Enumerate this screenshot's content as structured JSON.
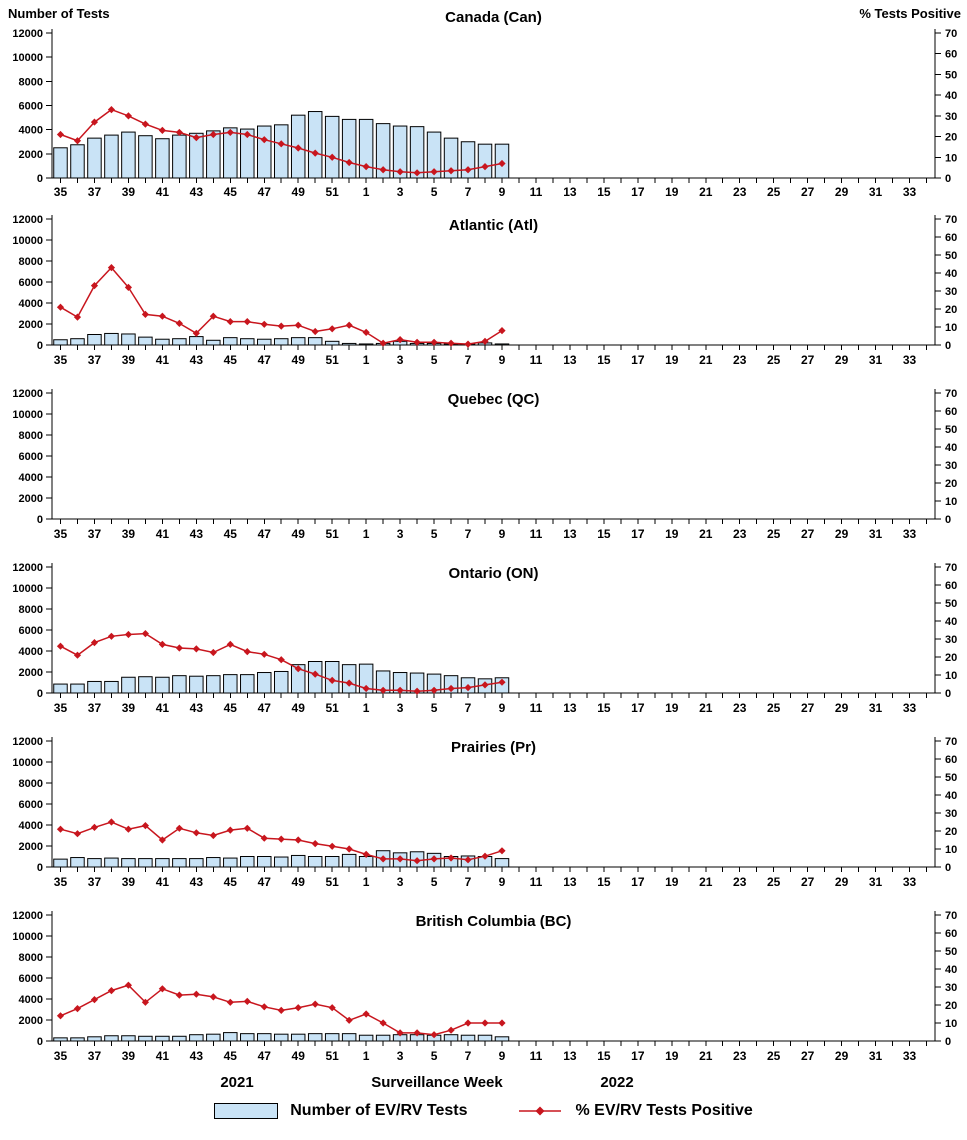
{
  "header": {
    "left_axis_title": "Number of Tests",
    "right_axis_title": "% Tests Positive"
  },
  "footer": {
    "year_left": "2021",
    "x_axis_title": "Surveillance Week",
    "year_right": "2022"
  },
  "legend": {
    "bar_label": "Number of EV/RV Tests",
    "line_label": "% EV/RV Tests Positive"
  },
  "colors": {
    "bar_fill": "#C9E3F6",
    "bar_stroke": "#000000",
    "line": "#C8161E",
    "axis": "#000000",
    "text": "#000000"
  },
  "chart_data": {
    "type": "bar",
    "subtype": "combo-bar-line-multipanel",
    "x_axis": {
      "year1": 2021,
      "year1_weeks": [
        35,
        52
      ],
      "year2": 2022,
      "year2_weeks": [
        1,
        34
      ],
      "tick_labels": [
        "35",
        "37",
        "39",
        "41",
        "43",
        "45",
        "47",
        "49",
        "51",
        "1",
        "3",
        "5",
        "7",
        "9",
        "11",
        "13",
        "15",
        "17",
        "19",
        "21",
        "23",
        "25",
        "27",
        "29",
        "31",
        "33"
      ]
    },
    "y_axis_left": {
      "title": "Number of Tests",
      "min": 0,
      "max": 12000,
      "step": 2000
    },
    "y_axis_right": {
      "title": "% Tests Positive",
      "min": 0,
      "max": 70,
      "step": 10
    },
    "data_weeks": [
      "35",
      "36",
      "37",
      "38",
      "39",
      "40",
      "41",
      "42",
      "43",
      "44",
      "45",
      "46",
      "47",
      "48",
      "49",
      "50",
      "51",
      "52",
      "1",
      "2",
      "3",
      "4",
      "5",
      "6",
      "7",
      "8",
      "9"
    ],
    "panels": [
      {
        "id": "canada",
        "title": "Canada (Can)",
        "bars": [
          2500,
          2750,
          3300,
          3550,
          3800,
          3500,
          3250,
          3550,
          3700,
          3900,
          4150,
          4050,
          4300,
          4400,
          5200,
          5500,
          5100,
          4850,
          4850,
          4500,
          4300,
          4250,
          3800,
          3300,
          3000,
          2800,
          2800
        ],
        "line_pct": [
          21,
          18,
          27,
          33,
          30,
          26,
          23,
          22,
          19.5,
          21,
          22,
          21,
          18.5,
          16.5,
          14.5,
          12,
          10,
          7.5,
          5.5,
          4,
          3,
          2.5,
          3,
          3.5,
          4,
          5.5,
          7
        ]
      },
      {
        "id": "atlantic",
        "title": "Atlantic (Atl)",
        "bars": [
          500,
          600,
          1000,
          1100,
          1050,
          750,
          550,
          600,
          800,
          450,
          700,
          600,
          550,
          600,
          700,
          700,
          350,
          150,
          100,
          150,
          350,
          150,
          150,
          100,
          100,
          200,
          100
        ],
        "line_pct": [
          21,
          15.5,
          33,
          43,
          32,
          17,
          16,
          12,
          6.5,
          16,
          13,
          13,
          11.5,
          10.5,
          11,
          7.5,
          9,
          11,
          7,
          1,
          3,
          1.5,
          1.5,
          1,
          0.5,
          2,
          8
        ]
      },
      {
        "id": "quebec",
        "title": "Quebec (QC)",
        "bars": [],
        "line_pct": []
      },
      {
        "id": "ontario",
        "title": "Ontario (ON)",
        "bars": [
          850,
          850,
          1100,
          1100,
          1500,
          1550,
          1500,
          1650,
          1600,
          1650,
          1750,
          1750,
          1950,
          2050,
          2700,
          3000,
          3000,
          2700,
          2750,
          2100,
          1950,
          1900,
          1800,
          1650,
          1450,
          1350,
          1450
        ],
        "line_pct": [
          26,
          21,
          28,
          31.5,
          32.5,
          33,
          27,
          25,
          24.5,
          22.5,
          27,
          23,
          21.5,
          18.5,
          13.5,
          10.5,
          7,
          5.5,
          2.5,
          1.5,
          1.5,
          1,
          1.5,
          2.5,
          3,
          4.5,
          6
        ]
      },
      {
        "id": "prairies",
        "title": "Prairies (Pr)",
        "bars": [
          750,
          900,
          800,
          850,
          800,
          800,
          800,
          800,
          800,
          900,
          850,
          1000,
          1000,
          950,
          1100,
          1000,
          1000,
          1200,
          1000,
          1550,
          1350,
          1450,
          1300,
          1000,
          1050,
          1000,
          800
        ],
        "line_pct": [
          21,
          18.5,
          22,
          25,
          21,
          23,
          15,
          21.5,
          19,
          17.5,
          20.5,
          21.5,
          16,
          15.5,
          15,
          13,
          11.5,
          10,
          7,
          4.5,
          4.5,
          3.5,
          4.5,
          5,
          4,
          6,
          9
        ]
      },
      {
        "id": "bc",
        "title": "British Columbia (BC)",
        "bars": [
          300,
          300,
          400,
          500,
          500,
          450,
          450,
          450,
          600,
          650,
          800,
          700,
          700,
          650,
          650,
          700,
          700,
          700,
          550,
          550,
          600,
          600,
          550,
          600,
          550,
          550,
          400
        ],
        "line_pct": [
          14,
          18,
          23,
          28,
          31,
          21.5,
          29,
          25.5,
          26,
          24.5,
          21.5,
          22,
          19,
          17,
          18.5,
          20.5,
          18.5,
          11.5,
          15,
          10,
          4.5,
          4.5,
          3.5,
          6,
          10,
          10,
          10
        ]
      }
    ]
  }
}
